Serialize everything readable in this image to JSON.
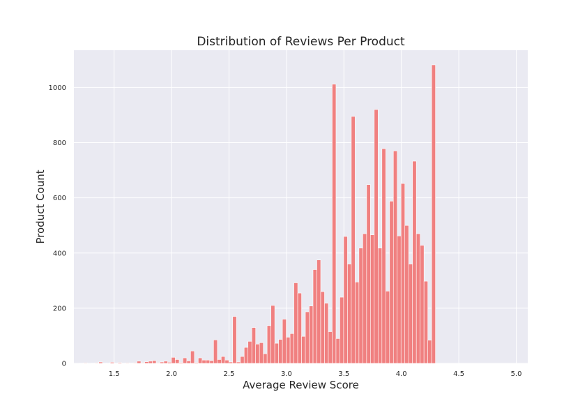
{
  "chart_data": {
    "type": "bar",
    "title": "Distribution of Reviews Per Product",
    "xlabel": "Average Review Score",
    "ylabel": "Product Count",
    "xlim": [
      1.15,
      5.1
    ],
    "ylim": [
      0,
      1135
    ],
    "xticks": [
      "1.5",
      "2.0",
      "2.5",
      "3.0",
      "3.5",
      "4.0",
      "4.5",
      "5.0"
    ],
    "xtick_values": [
      1.5,
      2.0,
      2.5,
      3.0,
      3.5,
      4.0,
      4.5,
      5.0
    ],
    "yticks": [
      "0",
      "200",
      "400",
      "600",
      "800",
      "1000"
    ],
    "ytick_values": [
      0,
      200,
      400,
      600,
      800,
      1000
    ],
    "grid": true,
    "background_color": "#eaeaf2",
    "bar_color": "#f08080",
    "bin_start": 1.2,
    "bin_width": 0.0333,
    "values": [
      1,
      2,
      0,
      1,
      2,
      5,
      1,
      1,
      4,
      1,
      3,
      1,
      2,
      1,
      2,
      8,
      2,
      6,
      8,
      10,
      2,
      5,
      8,
      4,
      22,
      14,
      3,
      20,
      9,
      45,
      3,
      20,
      12,
      12,
      10,
      85,
      14,
      25,
      12,
      5,
      170,
      5,
      25,
      58,
      80,
      130,
      70,
      75,
      35,
      137,
      210,
      73,
      87,
      160,
      95,
      108,
      292,
      255,
      98,
      187,
      208,
      340,
      375,
      260,
      218,
      115,
      1012,
      90,
      240,
      460,
      360,
      895,
      295,
      418,
      470,
      648,
      466,
      920,
      418,
      778,
      262,
      588,
      770,
      462,
      652,
      500,
      360,
      733,
      470,
      428,
      298,
      84,
      1082
    ]
  }
}
